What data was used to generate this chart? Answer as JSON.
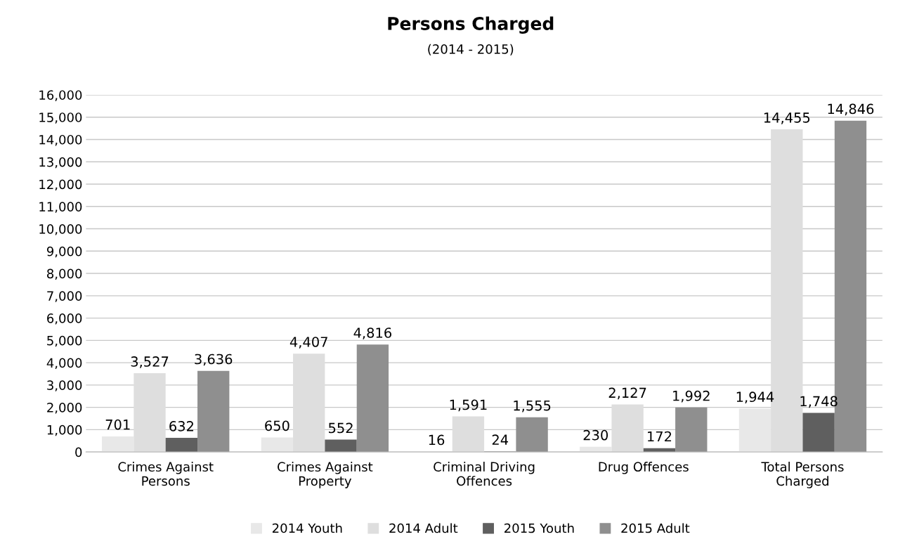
{
  "chart_data": {
    "type": "bar",
    "title": "Persons Charged",
    "subtitle": "(2014 - 2015)",
    "categories": [
      "Crimes Against\nPersons",
      "Crimes Against\nProperty",
      "Criminal Driving\nOffences",
      "Drug Offences",
      "Total Persons\nCharged"
    ],
    "series": [
      {
        "name": "2014 Youth",
        "color": "#e8e8e8",
        "values": [
          701,
          650,
          16,
          230,
          1944
        ],
        "value_labels": [
          "701",
          "650",
          "16",
          "230",
          "1,944"
        ]
      },
      {
        "name": "2014 Adult",
        "color": "#dedede",
        "values": [
          3527,
          4407,
          1591,
          2127,
          14455
        ],
        "value_labels": [
          "3,527",
          "4,407",
          "1,591",
          "2,127",
          "14,455"
        ]
      },
      {
        "name": "2015 Youth",
        "color": "#5f5f5f",
        "values": [
          632,
          552,
          24,
          172,
          1748
        ],
        "value_labels": [
          "632",
          "552",
          "24",
          "172",
          "1,748"
        ]
      },
      {
        "name": "2015 Adult",
        "color": "#8f8f8f",
        "values": [
          3636,
          4816,
          1555,
          1992,
          14846
        ],
        "value_labels": [
          "3,636",
          "4,816",
          "1,555",
          "1,992",
          "14,846"
        ]
      }
    ],
    "ylim": [
      0,
      16000
    ],
    "yticks": [
      0,
      {
        "value": 1000,
        "label": "1,000"
      },
      {
        "value": 2000,
        "label": "2,000"
      },
      {
        "value": 3000,
        "label": "3,000"
      },
      {
        "value": 4000,
        "label": "4,000"
      },
      {
        "value": 5000,
        "label": "5,000"
      },
      {
        "value": 6000,
        "label": "6,000"
      },
      {
        "value": 7000,
        "label": "7,000"
      },
      {
        "value": 8000,
        "label": "8,000"
      },
      {
        "value": 9000,
        "label": "9,000"
      },
      {
        "value": 10000,
        "label": "10,000"
      },
      {
        "value": 11000,
        "label": "11,000"
      },
      {
        "value": 12000,
        "label": "12,000"
      },
      {
        "value": 13000,
        "label": "13,000"
      },
      {
        "value": 14000,
        "label": "14,000"
      },
      {
        "value": 15000,
        "label": "15,000"
      },
      {
        "value": 16000,
        "label": "16,000"
      }
    ],
    "grid": "y",
    "legend": "bottom"
  }
}
